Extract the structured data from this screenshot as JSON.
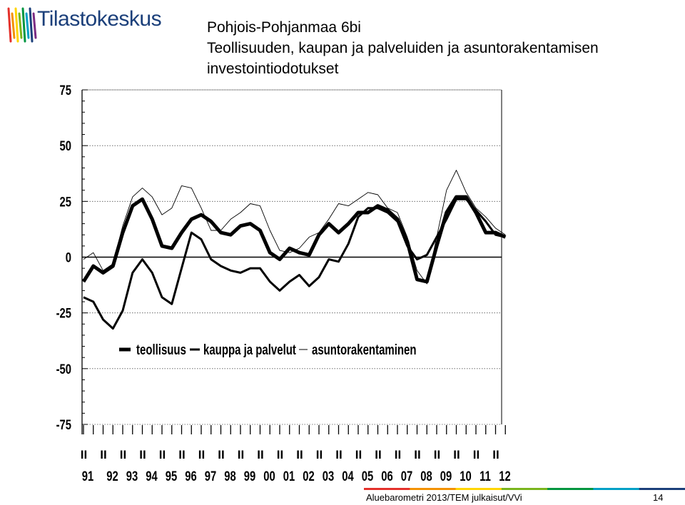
{
  "header": {
    "logo_text": "Tilastokeskus",
    "logo_colors": [
      "#e4312b",
      "#f39200",
      "#ffd500",
      "#7ab51d",
      "#009640",
      "#00a0c6",
      "#1b3f7a",
      "#7b2c83"
    ]
  },
  "title": {
    "line1": "Pohjois-Pohjanmaa  6bi",
    "line2": "Teollisuuden, kaupan ja palveluiden ja asuntorakentamisen",
    "line3": "investointiodotukset"
  },
  "footer": {
    "source": "Aluebarometri 2013/TEM julkaisut/VVi",
    "page": "14",
    "bar_colors": [
      "#e4312b",
      "#f39200",
      "#ffd500",
      "#7ab51d",
      "#009640",
      "#00a0c6",
      "#1b3f7a"
    ]
  },
  "chart_data": {
    "type": "line",
    "ylim": [
      -75,
      75
    ],
    "y_ticks": [
      75,
      50,
      25,
      0,
      -25,
      -50,
      -75
    ],
    "y_tick_labels": [
      "75",
      "50",
      "25",
      "0",
      "-25",
      "-50",
      "-75"
    ],
    "grid": true,
    "legend_position": "lower-center",
    "year_labels": [
      "91",
      "92",
      "93",
      "94",
      "95",
      "96",
      "97",
      "98",
      "99",
      "00",
      "01",
      "02",
      "03",
      "04",
      "05",
      "06",
      "07",
      "08",
      "09",
      "10",
      "11",
      "12"
    ],
    "period_marker": "II",
    "x": [
      1991.0,
      1991.5,
      1992.0,
      1992.5,
      1993.0,
      1993.5,
      1994.0,
      1994.5,
      1995.0,
      1995.5,
      1996.0,
      1996.5,
      1997.0,
      1997.5,
      1998.0,
      1998.5,
      1999.0,
      1999.5,
      2000.0,
      2000.5,
      2001.0,
      2001.5,
      2002.0,
      2002.5,
      2003.0,
      2003.5,
      2004.0,
      2004.5,
      2005.0,
      2005.5,
      2006.0,
      2006.5,
      2007.0,
      2007.5,
      2008.0,
      2008.5,
      2009.0,
      2009.5,
      2010.0,
      2010.5,
      2011.0,
      2011.5,
      2012.0,
      2012.5
    ],
    "series": [
      {
        "name": "teollisuus",
        "style": "thick",
        "color": "#000000",
        "values": [
          -11,
          -4,
          -7,
          -4,
          11,
          23,
          26,
          17,
          5,
          4,
          11,
          17,
          19,
          16,
          11,
          10,
          14,
          15,
          12,
          2,
          -1,
          4,
          2,
          1,
          10,
          15,
          11,
          15,
          20,
          20,
          23,
          21,
          17,
          7,
          -10,
          -11,
          5,
          20,
          27,
          27,
          20,
          11,
          11,
          9
        ]
      },
      {
        "name": "kauppa ja palvelut",
        "style": "medium",
        "color": "#000000",
        "values": [
          -18,
          -20,
          -28,
          -32,
          -24,
          -7,
          -1,
          -7,
          -18,
          -21,
          -5,
          11,
          8,
          -1,
          -4,
          -6,
          -7,
          -5,
          -5,
          -11,
          -15,
          -11,
          -8,
          -13,
          -9,
          -1,
          -2,
          6,
          18,
          22,
          22,
          20,
          16,
          5,
          -1,
          1,
          9,
          17,
          26,
          26,
          21,
          16,
          10,
          9
        ]
      },
      {
        "name": "asuntorakentaminen",
        "style": "thin",
        "color": "#000000",
        "values": [
          -1,
          2,
          -6,
          -3,
          14,
          27,
          31,
          27,
          19,
          22,
          32,
          31,
          22,
          12,
          12,
          17,
          20,
          24,
          23,
          12,
          3,
          2,
          4,
          9,
          11,
          17,
          24,
          23,
          26,
          29,
          28,
          22,
          20,
          9,
          -6,
          -12,
          9,
          30,
          39,
          29,
          22,
          18,
          13,
          10
        ]
      }
    ]
  }
}
